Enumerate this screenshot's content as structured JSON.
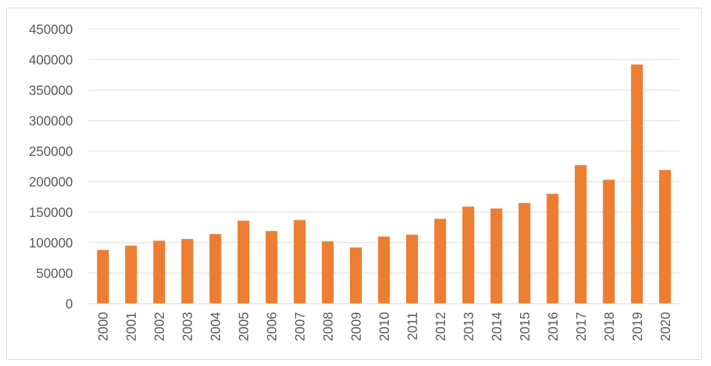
{
  "chart_data": {
    "type": "bar",
    "categories": [
      "2000",
      "2001",
      "2002",
      "2003",
      "2004",
      "2005",
      "2006",
      "2007",
      "2008",
      "2009",
      "2010",
      "2011",
      "2012",
      "2013",
      "2014",
      "2015",
      "2016",
      "2017",
      "2018",
      "2019",
      "2020"
    ],
    "values": [
      88000,
      95000,
      103000,
      106000,
      114000,
      136000,
      119000,
      137000,
      102000,
      92000,
      110000,
      113000,
      139000,
      159000,
      156000,
      165000,
      180000,
      227000,
      203000,
      392000,
      219000
    ],
    "title": "",
    "xlabel": "",
    "ylabel": "",
    "ylim": [
      0,
      450000
    ],
    "y_ticks": [
      "0",
      "50000",
      "100000",
      "150000",
      "200000",
      "250000",
      "300000",
      "350000",
      "400000",
      "450000"
    ],
    "grid": true,
    "bar_color": "#ed7d31"
  }
}
